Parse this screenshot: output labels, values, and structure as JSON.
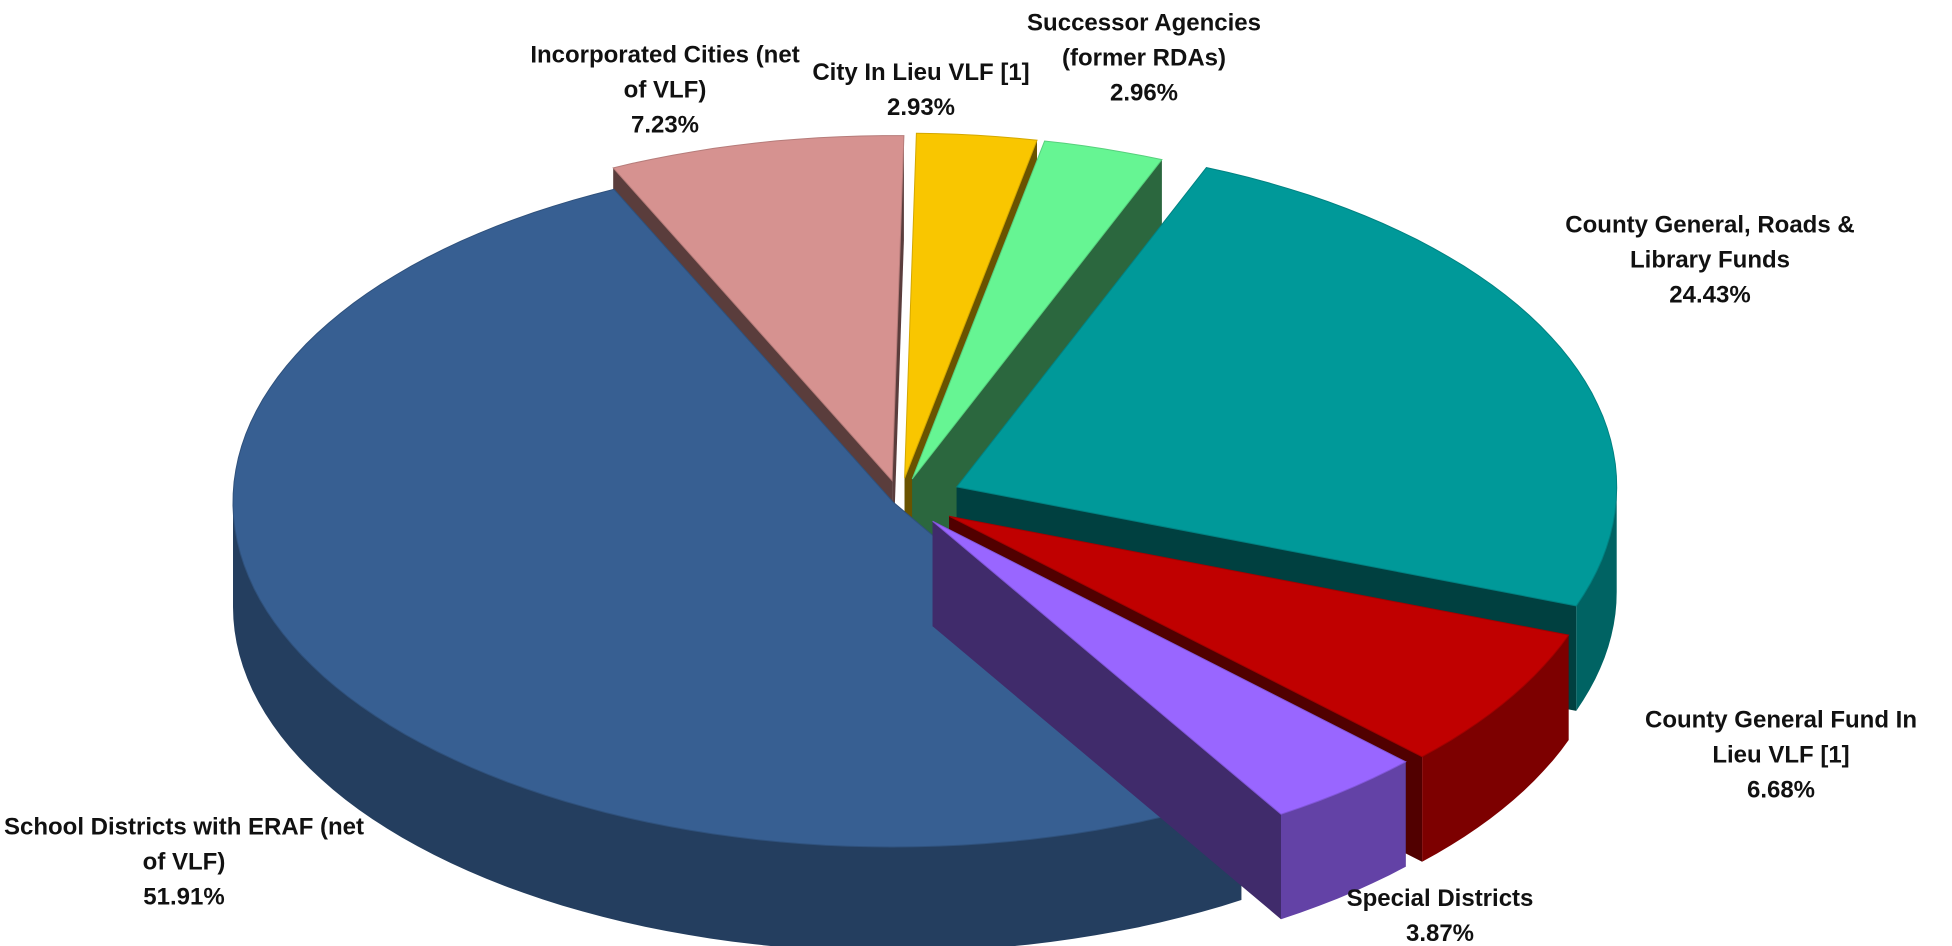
{
  "chart_data": {
    "type": "pie",
    "categories": [
      "Incorporated Cities (net of VLF)",
      "City In Lieu VLF [1]",
      "Successor Agencies (former RDAs)",
      "County General, Roads & Library Funds",
      "County General Fund In Lieu VLF [1]",
      "Special Districts",
      "School Districts with ERAF (net of VLF)"
    ],
    "values": [
      7.23,
      2.93,
      2.96,
      24.43,
      6.68,
      3.87,
      51.91
    ],
    "value_labels": [
      "7.23%",
      "2.93%",
      "2.96%",
      "24.43%",
      "6.68%",
      "3.87%",
      "51.91%"
    ],
    "colors": [
      "#d69290",
      "#f9c600",
      "#66f593",
      "#009999",
      "#c00000",
      "#9966ff",
      "#375f92"
    ]
  }
}
